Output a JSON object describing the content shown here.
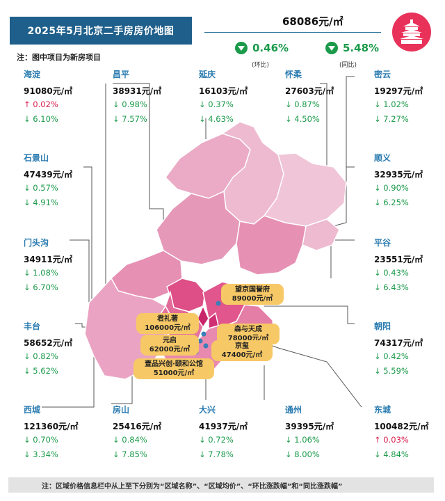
{
  "header": {
    "title": "2025年5月北京二手房房价地图",
    "note": "注：图中项目为新房项目",
    "average_price": "68086元/㎡",
    "mom_change": "0.46%",
    "mom_label": "(环比)",
    "yoy_change": "5.48%",
    "yoy_label": "(同比)"
  },
  "districts": [
    {
      "name": "海淀",
      "price": "91080元/㎡",
      "mom": "0.02%",
      "mom_dir": "up",
      "yoy": "6.10%",
      "yoy_dir": "down"
    },
    {
      "name": "昌平",
      "price": "38931元/㎡",
      "mom": "0.98%",
      "mom_dir": "down",
      "yoy": "7.57%",
      "yoy_dir": "down"
    },
    {
      "name": "延庆",
      "price": "16103元/㎡",
      "mom": "0.37%",
      "mom_dir": "down",
      "yoy": "4.63%",
      "yoy_dir": "down"
    },
    {
      "name": "怀柔",
      "price": "27603元/㎡",
      "mom": "0.87%",
      "mom_dir": "down",
      "yoy": "4.50%",
      "yoy_dir": "down"
    },
    {
      "name": "密云",
      "price": "19297元/㎡",
      "mom": "1.02%",
      "mom_dir": "down",
      "yoy": "7.27%",
      "yoy_dir": "down"
    },
    {
      "name": "石景山",
      "price": "47439元/㎡",
      "mom": "0.57%",
      "mom_dir": "down",
      "yoy": "4.91%",
      "yoy_dir": "down"
    },
    {
      "name": "顺义",
      "price": "32935元/㎡",
      "mom": "0.90%",
      "mom_dir": "down",
      "yoy": "6.25%",
      "yoy_dir": "down"
    },
    {
      "name": "门头沟",
      "price": "34911元/㎡",
      "mom": "1.08%",
      "mom_dir": "down",
      "yoy": "6.70%",
      "yoy_dir": "down"
    },
    {
      "name": "平谷",
      "price": "23551元/㎡",
      "mom": "0.43%",
      "mom_dir": "down",
      "yoy": "6.43%",
      "yoy_dir": "down"
    },
    {
      "name": "丰台",
      "price": "58652元/㎡",
      "mom": "0.82%",
      "mom_dir": "down",
      "yoy": "5.62%",
      "yoy_dir": "down"
    },
    {
      "name": "朝阳",
      "price": "74317元/㎡",
      "mom": "0.42%",
      "mom_dir": "down",
      "yoy": "5.59%",
      "yoy_dir": "down"
    },
    {
      "name": "西城",
      "price": "121360元/㎡",
      "mom": "0.70%",
      "mom_dir": "down",
      "yoy": "3.34%",
      "yoy_dir": "down"
    },
    {
      "name": "房山",
      "price": "25416元/㎡",
      "mom": "0.84%",
      "mom_dir": "down",
      "yoy": "7.85%",
      "yoy_dir": "down"
    },
    {
      "name": "大兴",
      "price": "41937元/㎡",
      "mom": "0.72%",
      "mom_dir": "down",
      "yoy": "7.78%",
      "yoy_dir": "down"
    },
    {
      "name": "通州",
      "price": "39395元/㎡",
      "mom": "1.06%",
      "mom_dir": "down",
      "yoy": "8.00%",
      "yoy_dir": "down"
    },
    {
      "name": "东城",
      "price": "100482元/㎡",
      "mom": "0.03%",
      "mom_dir": "up",
      "yoy": "4.84%",
      "yoy_dir": "down"
    }
  ],
  "projects": [
    {
      "name": "望京国誉府",
      "price": "89000元/㎡"
    },
    {
      "name": "君礼著",
      "price": "106000元/㎡"
    },
    {
      "name": "森与天成",
      "price": "78000元/㎡"
    },
    {
      "name": "元启",
      "price": "62000元/㎡"
    },
    {
      "name": "京玺",
      "price": "47400元/㎡"
    },
    {
      "name": "壹品兴创·颐和公馆",
      "price": "51000元/㎡"
    }
  ],
  "footer": {
    "note": "注：区域价格信息栏中从上至下分别为“区域名称”、“区域均价”、“环比涨跌幅”和“同比涨跌幅”"
  },
  "colors": {
    "title_bg": "#1f5f8b",
    "down": "#1a9a4a",
    "up": "#d81b4b",
    "district_name": "#2a7bb0",
    "project_label": "#f7c866",
    "logo": "#e8325a"
  }
}
